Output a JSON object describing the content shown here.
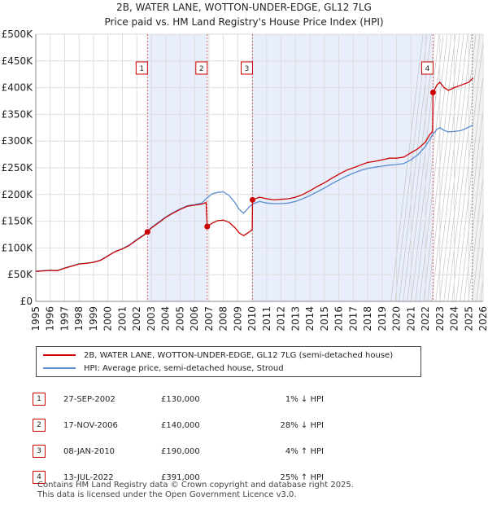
{
  "title": {
    "line1": "2B, WATER LANE, WOTTON-UNDER-EDGE, GL12 7LG",
    "line2": "Price paid vs. HM Land Registry's House Price Index (HPI)"
  },
  "chart_data": {
    "type": "line",
    "xlim": [
      1995,
      2026
    ],
    "ylim": [
      0,
      500000
    ],
    "x_ticks": [
      1995,
      1996,
      1997,
      1998,
      1999,
      2000,
      2001,
      2002,
      2003,
      2004,
      2005,
      2006,
      2007,
      2008,
      2009,
      2010,
      2011,
      2012,
      2013,
      2014,
      2015,
      2016,
      2017,
      2018,
      2019,
      2020,
      2021,
      2022,
      2023,
      2024,
      2025,
      2026
    ],
    "y_ticks": [
      0,
      50000,
      100000,
      150000,
      200000,
      250000,
      300000,
      350000,
      400000,
      450000,
      500000
    ],
    "y_tick_labels": [
      "£0",
      "£50K",
      "£100K",
      "£150K",
      "£200K",
      "£250K",
      "£300K",
      "£350K",
      "£400K",
      "£450K",
      "£500K"
    ],
    "shaded_ranges": [
      [
        2002.74,
        2006.88
      ],
      [
        2010.02,
        2022.53
      ]
    ],
    "forecast_start": 2025.25,
    "series": [
      {
        "name": "2B, WATER LANE, WOTTON-UNDER-EDGE, GL12 7LG (semi-detached house)",
        "color": "#cc0000",
        "points": [
          [
            1995.0,
            56000
          ],
          [
            1995.5,
            57000
          ],
          [
            1996.0,
            58000
          ],
          [
            1996.5,
            57500
          ],
          [
            1997.0,
            62000
          ],
          [
            1997.5,
            66000
          ],
          [
            1998.0,
            70000
          ],
          [
            1998.5,
            71000
          ],
          [
            1999.0,
            73000
          ],
          [
            1999.5,
            77000
          ],
          [
            2000.0,
            85000
          ],
          [
            2000.5,
            93000
          ],
          [
            2001.0,
            98000
          ],
          [
            2001.5,
            105000
          ],
          [
            2002.0,
            115000
          ],
          [
            2002.5,
            124000
          ],
          [
            2002.74,
            130000
          ],
          [
            2003.0,
            137000
          ],
          [
            2003.5,
            147000
          ],
          [
            2004.0,
            157000
          ],
          [
            2004.5,
            165000
          ],
          [
            2005.0,
            172000
          ],
          [
            2005.5,
            178000
          ],
          [
            2006.0,
            180000
          ],
          [
            2006.5,
            182000
          ],
          [
            2006.8,
            185000
          ],
          [
            2006.88,
            140000
          ],
          [
            2007.2,
            146000
          ],
          [
            2007.6,
            151000
          ],
          [
            2008.0,
            152000
          ],
          [
            2008.4,
            148000
          ],
          [
            2008.8,
            138000
          ],
          [
            2009.1,
            128000
          ],
          [
            2009.4,
            123000
          ],
          [
            2009.8,
            130000
          ],
          [
            2010.0,
            134000
          ],
          [
            2010.02,
            190000
          ],
          [
            2010.5,
            195000
          ],
          [
            2011.0,
            192000
          ],
          [
            2011.5,
            190000
          ],
          [
            2012.0,
            191000
          ],
          [
            2012.5,
            192000
          ],
          [
            2013.0,
            195000
          ],
          [
            2013.5,
            200000
          ],
          [
            2014.0,
            207000
          ],
          [
            2014.5,
            215000
          ],
          [
            2015.0,
            222000
          ],
          [
            2015.5,
            230000
          ],
          [
            2016.0,
            238000
          ],
          [
            2016.5,
            245000
          ],
          [
            2017.0,
            250000
          ],
          [
            2017.5,
            255000
          ],
          [
            2018.0,
            260000
          ],
          [
            2018.5,
            262000
          ],
          [
            2019.0,
            265000
          ],
          [
            2019.5,
            268000
          ],
          [
            2020.0,
            268000
          ],
          [
            2020.5,
            270000
          ],
          [
            2021.0,
            278000
          ],
          [
            2021.5,
            286000
          ],
          [
            2022.0,
            298000
          ],
          [
            2022.3,
            312000
          ],
          [
            2022.5,
            318000
          ],
          [
            2022.53,
            391000
          ],
          [
            2022.8,
            405000
          ],
          [
            2023.0,
            410000
          ],
          [
            2023.3,
            400000
          ],
          [
            2023.6,
            395000
          ],
          [
            2024.0,
            400000
          ],
          [
            2024.5,
            405000
          ],
          [
            2025.0,
            410000
          ],
          [
            2025.3,
            418000
          ]
        ]
      },
      {
        "name": "HPI: Average price, semi-detached house, Stroud",
        "color": "#5b8ed1",
        "points": [
          [
            1995.0,
            56500
          ],
          [
            1995.5,
            57500
          ],
          [
            1996.0,
            58500
          ],
          [
            1996.5,
            58000
          ],
          [
            1997.0,
            62500
          ],
          [
            1997.5,
            66500
          ],
          [
            1998.0,
            70500
          ],
          [
            1998.5,
            71500
          ],
          [
            1999.0,
            73500
          ],
          [
            1999.5,
            77500
          ],
          [
            2000.0,
            85500
          ],
          [
            2000.5,
            93500
          ],
          [
            2001.0,
            98500
          ],
          [
            2001.5,
            106000
          ],
          [
            2002.0,
            116000
          ],
          [
            2002.5,
            125000
          ],
          [
            2002.74,
            131300
          ],
          [
            2003.0,
            138000
          ],
          [
            2003.5,
            148000
          ],
          [
            2004.0,
            158000
          ],
          [
            2004.5,
            166000
          ],
          [
            2005.0,
            173000
          ],
          [
            2005.5,
            179000
          ],
          [
            2006.0,
            181000
          ],
          [
            2006.5,
            184000
          ],
          [
            2006.88,
            194000
          ],
          [
            2007.2,
            201000
          ],
          [
            2007.6,
            204000
          ],
          [
            2008.0,
            205000
          ],
          [
            2008.4,
            198000
          ],
          [
            2008.8,
            185000
          ],
          [
            2009.1,
            172000
          ],
          [
            2009.4,
            165000
          ],
          [
            2009.8,
            177000
          ],
          [
            2010.02,
            182000
          ],
          [
            2010.5,
            187000
          ],
          [
            2011.0,
            184000
          ],
          [
            2011.5,
            183000
          ],
          [
            2012.0,
            183000
          ],
          [
            2012.5,
            184000
          ],
          [
            2013.0,
            187000
          ],
          [
            2013.5,
            192000
          ],
          [
            2014.0,
            198000
          ],
          [
            2014.5,
            205000
          ],
          [
            2015.0,
            212000
          ],
          [
            2015.5,
            220000
          ],
          [
            2016.0,
            227000
          ],
          [
            2016.5,
            234000
          ],
          [
            2017.0,
            240000
          ],
          [
            2017.5,
            245000
          ],
          [
            2018.0,
            249000
          ],
          [
            2018.5,
            251000
          ],
          [
            2019.0,
            253000
          ],
          [
            2019.5,
            255000
          ],
          [
            2020.0,
            256000
          ],
          [
            2020.5,
            258000
          ],
          [
            2021.0,
            265000
          ],
          [
            2021.5,
            275000
          ],
          [
            2022.0,
            290000
          ],
          [
            2022.53,
            312800
          ],
          [
            2022.8,
            322000
          ],
          [
            2023.0,
            325000
          ],
          [
            2023.3,
            320000
          ],
          [
            2023.6,
            317000
          ],
          [
            2024.0,
            318000
          ],
          [
            2024.5,
            320000
          ],
          [
            2025.0,
            326000
          ],
          [
            2025.3,
            330000
          ]
        ]
      }
    ],
    "sales": [
      {
        "label": "1",
        "x": 2002.74,
        "price": 130000
      },
      {
        "label": "2",
        "x": 2006.88,
        "price": 140000
      },
      {
        "label": "3",
        "x": 2010.02,
        "price": 190000
      },
      {
        "label": "4",
        "x": 2022.53,
        "price": 391000
      }
    ]
  },
  "legend": {
    "property": "2B, WATER LANE, WOTTON-UNDER-EDGE, GL12 7LG (semi-detached house)",
    "hpi": "HPI: Average price, semi-detached house, Stroud"
  },
  "sales_table": [
    {
      "num": "1",
      "date": "27-SEP-2002",
      "price": "£130,000",
      "hpi": "1% ↓ HPI"
    },
    {
      "num": "2",
      "date": "17-NOV-2006",
      "price": "£140,000",
      "hpi": "28% ↓ HPI"
    },
    {
      "num": "3",
      "date": "08-JAN-2010",
      "price": "£190,000",
      "hpi": "4% ↑ HPI"
    },
    {
      "num": "4",
      "date": "13-JUL-2022",
      "price": "£391,000",
      "hpi": "25% ↑ HPI"
    }
  ],
  "footer": {
    "line1": "Contains HM Land Registry data © Crown copyright and database right 2025.",
    "line2": "This data is licensed under the Open Government Licence v3.0."
  }
}
